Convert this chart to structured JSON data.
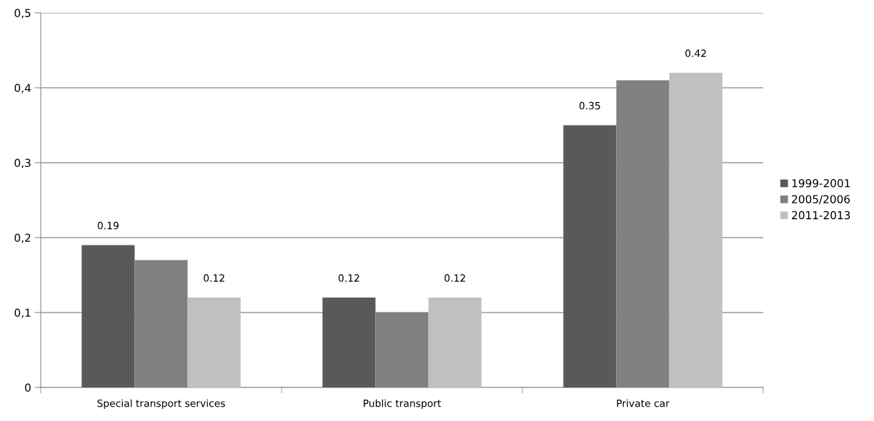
{
  "chart_data": {
    "type": "bar",
    "categories": [
      "Special transport services",
      "Public transport",
      "Private car"
    ],
    "series": [
      {
        "name": "1999-2001",
        "color": "#595959",
        "values": [
          0.19,
          0.12,
          0.35
        ],
        "value_labels": [
          "0.19",
          "0.12",
          "0.35"
        ]
      },
      {
        "name": "2005/2006",
        "color": "#808080",
        "values": [
          0.17,
          0.1,
          0.41
        ]
      },
      {
        "name": "2011-2013",
        "color": "#c0c0c0",
        "values": [
          0.12,
          0.12,
          0.42
        ],
        "value_labels": [
          "0.12",
          "0.12",
          "0.42"
        ]
      }
    ],
    "ylim": [
      0,
      0.5
    ],
    "yticks": [
      0,
      {
        "value": 0.1,
        "label": "0,1"
      },
      {
        "value": 0.2,
        "label": "0,2"
      },
      {
        "value": 0.3,
        "label": "0,3"
      },
      {
        "value": 0.4,
        "label": "0,4"
      },
      {
        "value": 0.5,
        "label": "0,5"
      }
    ],
    "grid": "y",
    "legend": "right"
  }
}
